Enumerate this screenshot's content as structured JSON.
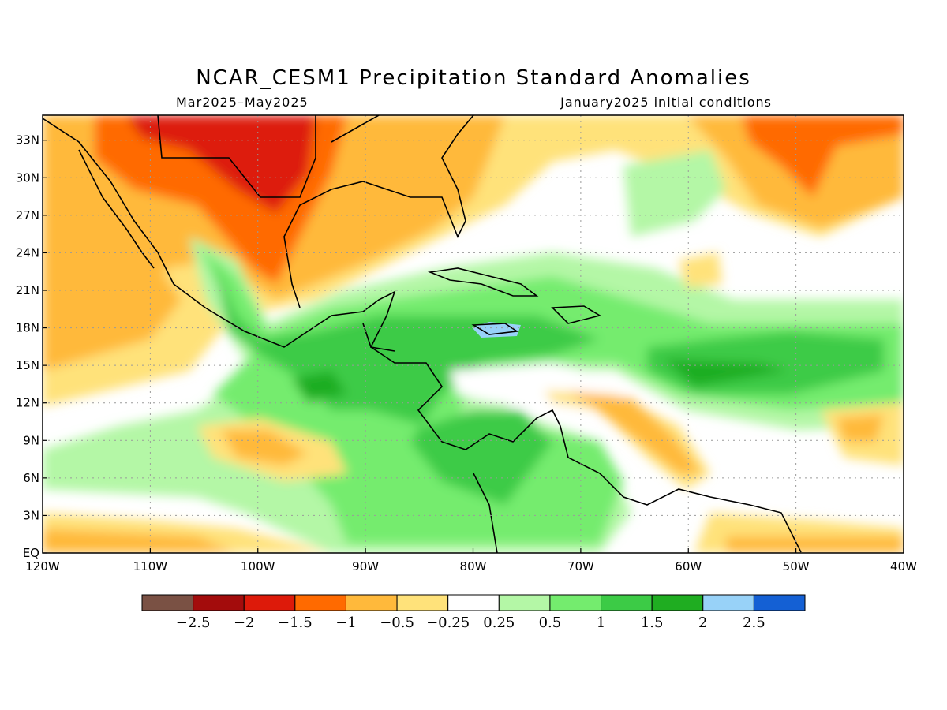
{
  "title": "NCAR_CESM1 Precipitation Standard Anomalies",
  "period": "Mar2025–May2025",
  "init": "January2025 initial conditions",
  "lat_ticks": [
    "EQ",
    "3N",
    "6N",
    "9N",
    "12N",
    "15N",
    "18N",
    "21N",
    "24N",
    "27N",
    "30N",
    "33N"
  ],
  "lon_ticks": [
    "120W",
    "110W",
    "100W",
    "90W",
    "80W",
    "70W",
    "60W",
    "50W",
    "40W"
  ],
  "map_extent": {
    "lon_min": -120,
    "lon_max": -40,
    "lat_min": 0,
    "lat_max": 35
  },
  "colorbar": {
    "colors": [
      "#7a5144",
      "#a30c0c",
      "#dd1a0a",
      "#ff6a00",
      "#ffb93b",
      "#ffe27a",
      "#ffffff",
      "#b4f7a6",
      "#74ec6e",
      "#3ccb46",
      "#1fad21",
      "#98d2f8",
      "#1460d4"
    ],
    "labels": [
      "−2.5",
      "−2",
      "−1.5",
      "−1",
      "−0.5",
      "−0.25",
      "0.25",
      "0.5",
      "1",
      "1.5",
      "2",
      "2.5"
    ]
  }
}
